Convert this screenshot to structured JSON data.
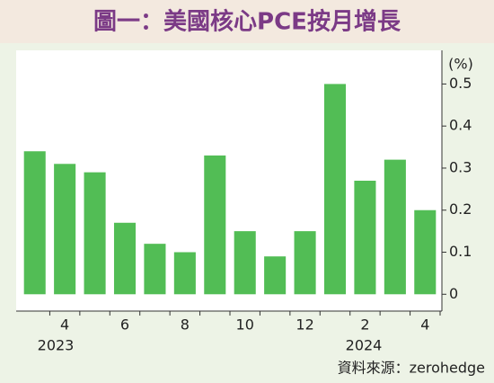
{
  "chart_data": {
    "type": "bar",
    "title": "圖一：美國核心PCE按月增長",
    "unit_label": "(%)",
    "categories": [
      null,
      "4",
      null,
      "6",
      null,
      "8",
      null,
      "10",
      null,
      "12",
      null,
      "2",
      null,
      "4"
    ],
    "values": [
      0.34,
      0.31,
      0.29,
      0.17,
      0.12,
      0.1,
      0.33,
      0.15,
      0.09,
      0.15,
      0.5,
      0.27,
      0.32,
      0.2
    ],
    "color": "#52bd55",
    "ylim": [
      -0.04,
      0.58
    ],
    "yticks": [
      0,
      0.1,
      0.2,
      0.3,
      0.4,
      0.5
    ],
    "annotations": [
      "2023",
      "2024"
    ],
    "source": "資料來源：zerohedge"
  }
}
